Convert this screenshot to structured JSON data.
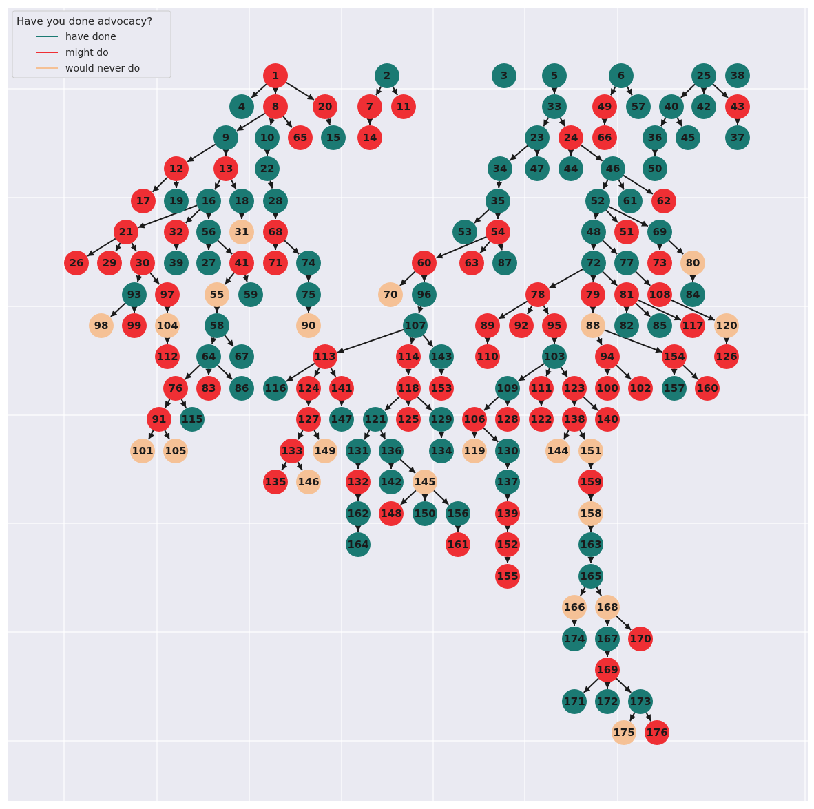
{
  "legend": {
    "title": "Have you done advocacy?",
    "items": [
      {
        "key": "have",
        "label": "have done",
        "color": "#1b7a73"
      },
      {
        "key": "might",
        "label": "might do",
        "color": "#ef2f34"
      },
      {
        "key": "never",
        "label": "would never do",
        "color": "#f5c196"
      }
    ]
  },
  "colors": {
    "background": "#eaeaf2",
    "grid": "#ffffff",
    "edge": "#1a1a1a",
    "have": "#1b7a73",
    "might": "#ef2f34",
    "never": "#f5c196"
  },
  "nodes": {
    "have": [
      2,
      3,
      4,
      5,
      6,
      9,
      10,
      15,
      16,
      18,
      19,
      22,
      23,
      25,
      27,
      28,
      33,
      34,
      35,
      36,
      37,
      38,
      39,
      40,
      42,
      44,
      45,
      46,
      47,
      48,
      50,
      52,
      53,
      56,
      57,
      58,
      59,
      61,
      64,
      67,
      69,
      72,
      74,
      75,
      77,
      82,
      84,
      85,
      86,
      87,
      93,
      96,
      103,
      107,
      109,
      115,
      116,
      121,
      129,
      130,
      131,
      134,
      136,
      137,
      142,
      143,
      147,
      150,
      156,
      157,
      162,
      163,
      164,
      165,
      167,
      171,
      172,
      173,
      174
    ],
    "might": [
      1,
      7,
      8,
      11,
      12,
      13,
      14,
      17,
      20,
      21,
      24,
      26,
      29,
      30,
      32,
      41,
      43,
      49,
      51,
      54,
      60,
      62,
      63,
      65,
      66,
      68,
      71,
      73,
      76,
      78,
      79,
      81,
      83,
      89,
      91,
      92,
      94,
      95,
      97,
      99,
      100,
      102,
      106,
      108,
      110,
      111,
      112,
      113,
      114,
      117,
      118,
      122,
      123,
      124,
      125,
      126,
      127,
      128,
      132,
      133,
      135,
      138,
      139,
      140,
      141,
      148,
      152,
      153,
      154,
      155,
      159,
      160,
      161,
      169,
      170,
      176
    ],
    "never": [
      31,
      55,
      70,
      80,
      88,
      90,
      98,
      101,
      104,
      105,
      119,
      120,
      144,
      145,
      146,
      149,
      151,
      158,
      166,
      168,
      175
    ]
  },
  "edges": [
    [
      1,
      4
    ],
    [
      1,
      8
    ],
    [
      1,
      20
    ],
    [
      2,
      7
    ],
    [
      2,
      11
    ],
    [
      7,
      14
    ],
    [
      20,
      15
    ],
    [
      8,
      9
    ],
    [
      8,
      10
    ],
    [
      8,
      65
    ],
    [
      9,
      12
    ],
    [
      9,
      13
    ],
    [
      10,
      22
    ],
    [
      22,
      28
    ],
    [
      28,
      68
    ],
    [
      12,
      17
    ],
    [
      12,
      19
    ],
    [
      13,
      16
    ],
    [
      13,
      18
    ],
    [
      16,
      21
    ],
    [
      16,
      32
    ],
    [
      16,
      56
    ],
    [
      18,
      31
    ],
    [
      21,
      26
    ],
    [
      21,
      29
    ],
    [
      21,
      30
    ],
    [
      32,
      39
    ],
    [
      56,
      27
    ],
    [
      56,
      41
    ],
    [
      68,
      71
    ],
    [
      68,
      74
    ],
    [
      74,
      75
    ],
    [
      75,
      90
    ],
    [
      41,
      55
    ],
    [
      41,
      59
    ],
    [
      55,
      58
    ],
    [
      58,
      64
    ],
    [
      58,
      67
    ],
    [
      64,
      76
    ],
    [
      64,
      83
    ],
    [
      64,
      86
    ],
    [
      76,
      91
    ],
    [
      76,
      115
    ],
    [
      91,
      101
    ],
    [
      91,
      105
    ],
    [
      30,
      93
    ],
    [
      30,
      97
    ],
    [
      93,
      98
    ],
    [
      93,
      99
    ],
    [
      97,
      104
    ],
    [
      104,
      112
    ],
    [
      5,
      33
    ],
    [
      33,
      23
    ],
    [
      33,
      24
    ],
    [
      23,
      34
    ],
    [
      23,
      47
    ],
    [
      24,
      44
    ],
    [
      24,
      46
    ],
    [
      34,
      35
    ],
    [
      35,
      53
    ],
    [
      35,
      54
    ],
    [
      54,
      60
    ],
    [
      54,
      63
    ],
    [
      54,
      87
    ],
    [
      60,
      70
    ],
    [
      60,
      96
    ],
    [
      96,
      107
    ],
    [
      107,
      113
    ],
    [
      107,
      114
    ],
    [
      107,
      143
    ],
    [
      113,
      116
    ],
    [
      113,
      124
    ],
    [
      113,
      141
    ],
    [
      124,
      127
    ],
    [
      141,
      147
    ],
    [
      127,
      133
    ],
    [
      127,
      149
    ],
    [
      133,
      135
    ],
    [
      133,
      146
    ],
    [
      114,
      118
    ],
    [
      143,
      153
    ],
    [
      118,
      121
    ],
    [
      118,
      125
    ],
    [
      118,
      129
    ],
    [
      121,
      131
    ],
    [
      121,
      136
    ],
    [
      129,
      134
    ],
    [
      131,
      132
    ],
    [
      132,
      162
    ],
    [
      162,
      164
    ],
    [
      136,
      142
    ],
    [
      136,
      145
    ],
    [
      145,
      148
    ],
    [
      145,
      150
    ],
    [
      145,
      156
    ],
    [
      156,
      161
    ],
    [
      46,
      52
    ],
    [
      46,
      61
    ],
    [
      46,
      62
    ],
    [
      52,
      48
    ],
    [
      52,
      51
    ],
    [
      52,
      69
    ],
    [
      69,
      73
    ],
    [
      69,
      80
    ],
    [
      80,
      84
    ],
    [
      48,
      72
    ],
    [
      48,
      77
    ],
    [
      72,
      78
    ],
    [
      72,
      79
    ],
    [
      72,
      81
    ],
    [
      77,
      108
    ],
    [
      108,
      120
    ],
    [
      120,
      126
    ],
    [
      81,
      82
    ],
    [
      81,
      85
    ],
    [
      81,
      117
    ],
    [
      79,
      88
    ],
    [
      88,
      94
    ],
    [
      88,
      154
    ],
    [
      154,
      157
    ],
    [
      154,
      160
    ],
    [
      94,
      100
    ],
    [
      94,
      102
    ],
    [
      78,
      89
    ],
    [
      78,
      92
    ],
    [
      78,
      95
    ],
    [
      89,
      110
    ],
    [
      95,
      103
    ],
    [
      103,
      109
    ],
    [
      103,
      111
    ],
    [
      103,
      123
    ],
    [
      109,
      106
    ],
    [
      109,
      128
    ],
    [
      106,
      119
    ],
    [
      106,
      130
    ],
    [
      130,
      137
    ],
    [
      137,
      139
    ],
    [
      139,
      152
    ],
    [
      152,
      155
    ],
    [
      111,
      122
    ],
    [
      123,
      138
    ],
    [
      123,
      140
    ],
    [
      138,
      144
    ],
    [
      138,
      151
    ],
    [
      151,
      159
    ],
    [
      159,
      158
    ],
    [
      158,
      163
    ],
    [
      163,
      165
    ],
    [
      165,
      166
    ],
    [
      165,
      168
    ],
    [
      166,
      174
    ],
    [
      168,
      167
    ],
    [
      168,
      170
    ],
    [
      167,
      169
    ],
    [
      169,
      171
    ],
    [
      169,
      172
    ],
    [
      169,
      173
    ],
    [
      173,
      175
    ],
    [
      173,
      176
    ],
    [
      6,
      49
    ],
    [
      6,
      57
    ],
    [
      49,
      66
    ],
    [
      25,
      40
    ],
    [
      25,
      42
    ],
    [
      25,
      43
    ],
    [
      40,
      36
    ],
    [
      40,
      45
    ],
    [
      36,
      50
    ],
    [
      43,
      37
    ]
  ]
}
